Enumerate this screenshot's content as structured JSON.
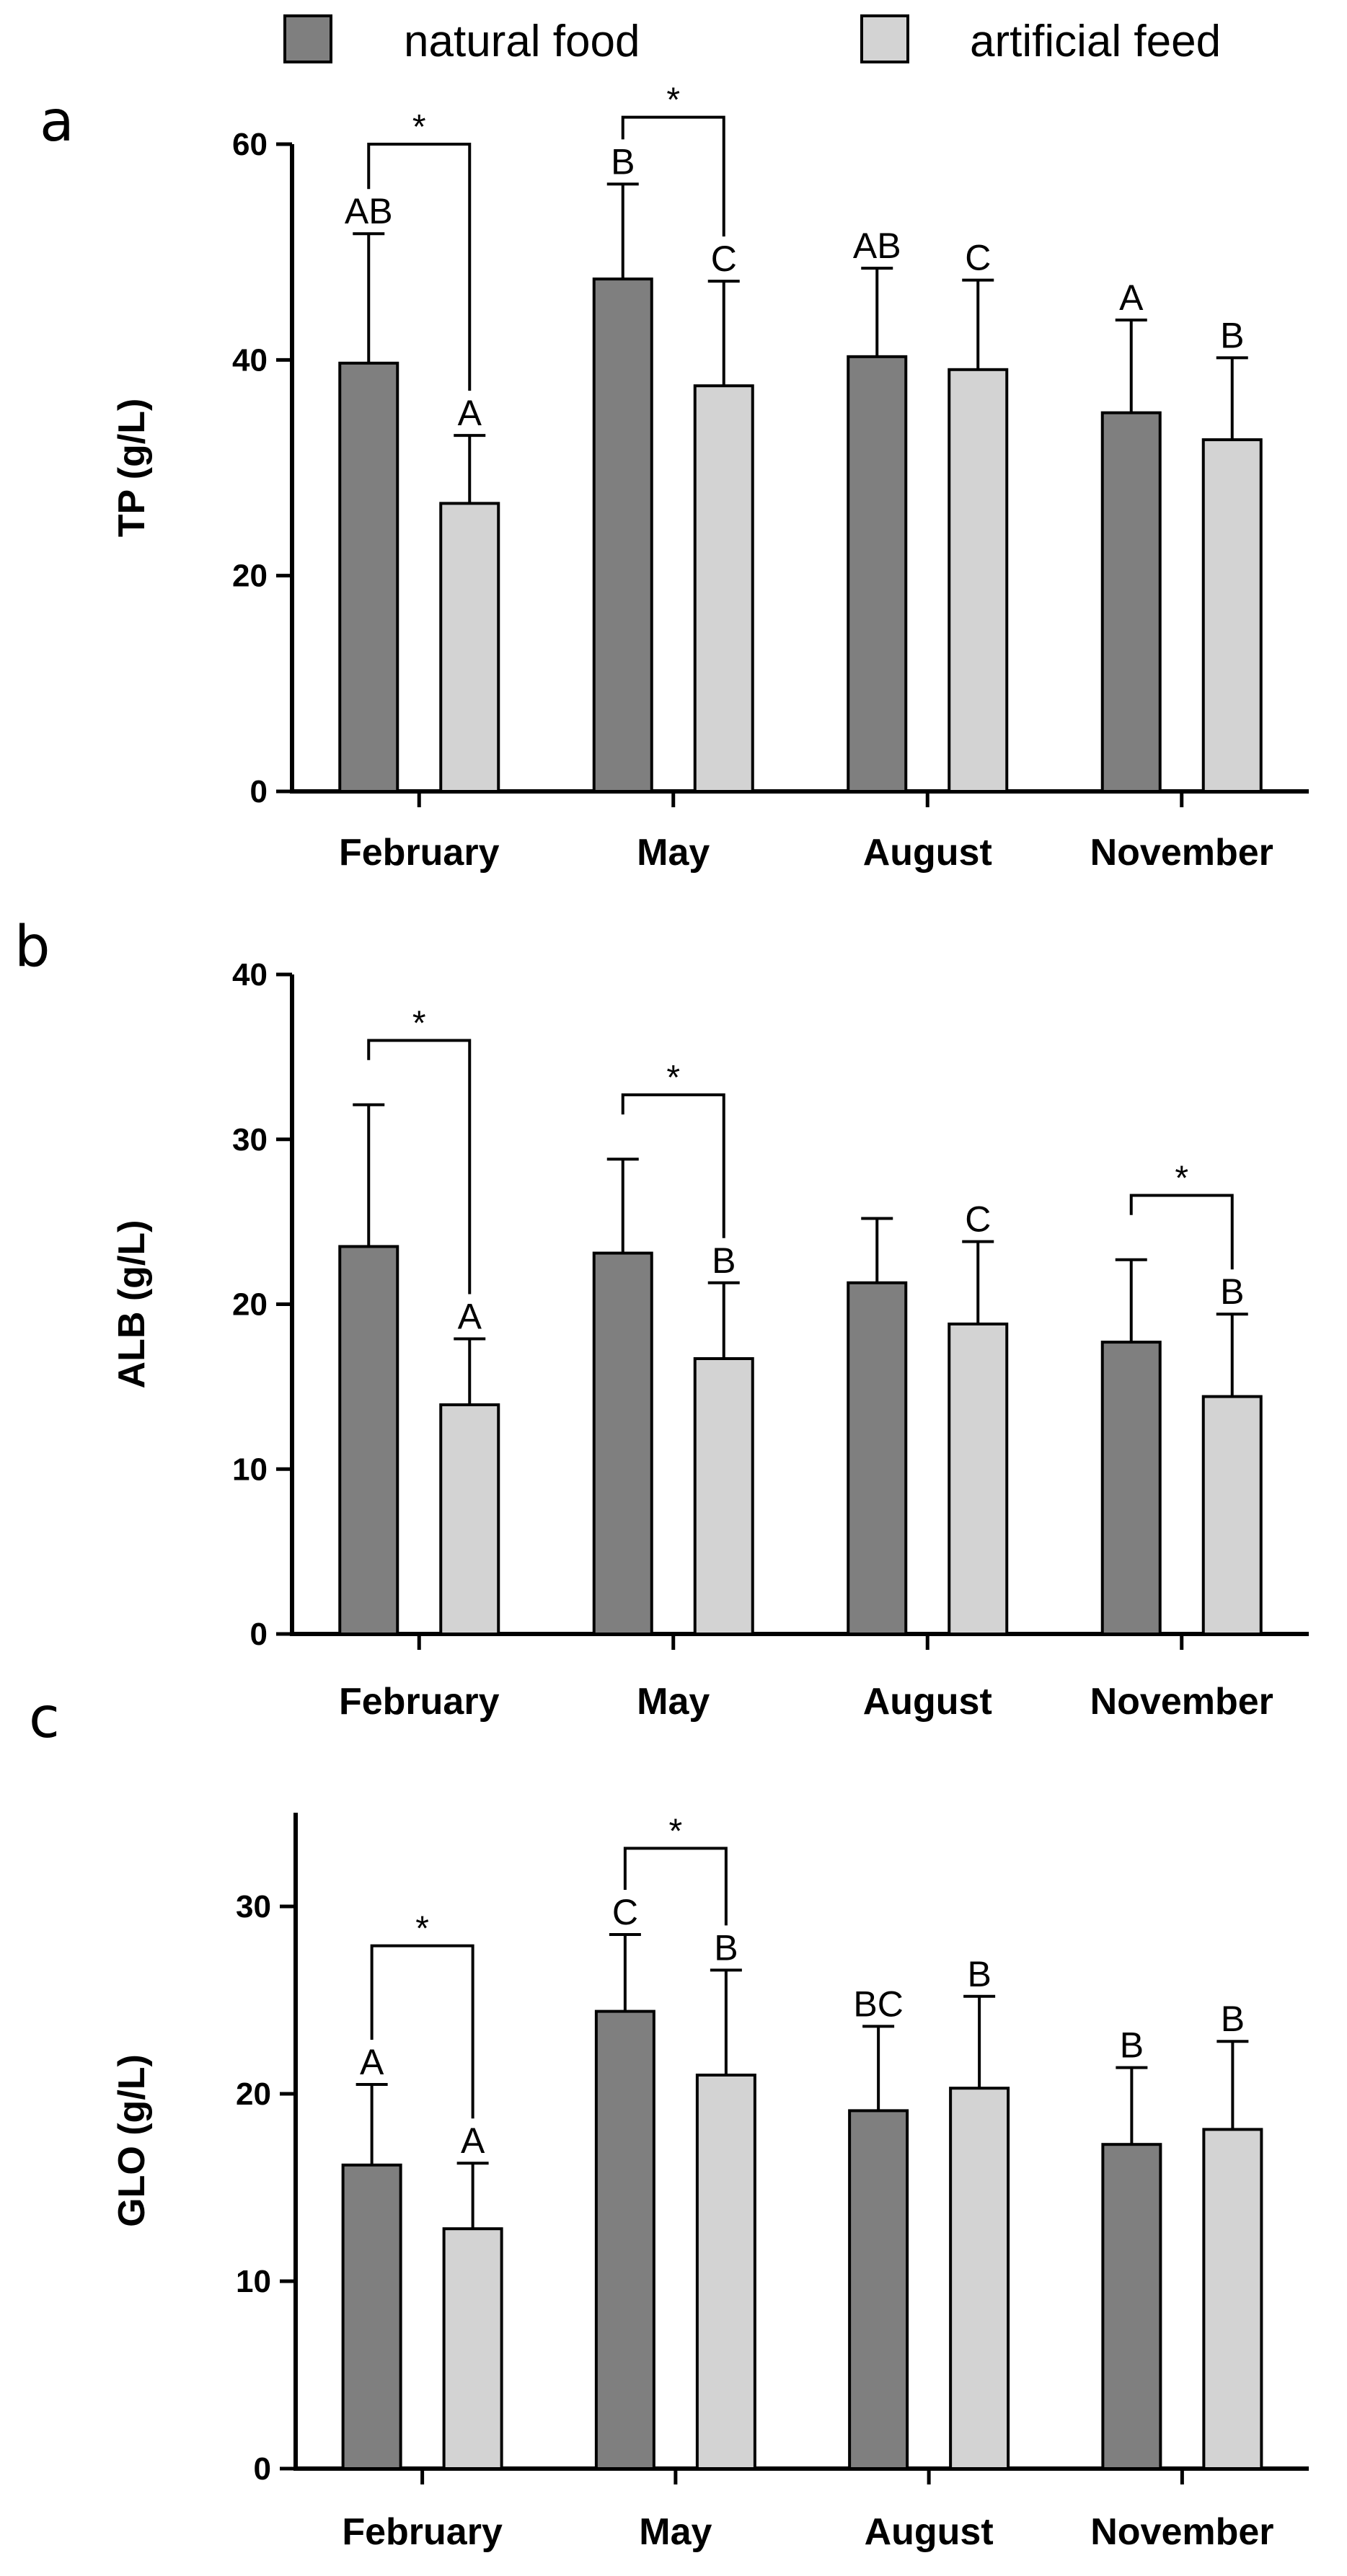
{
  "legend": {
    "series": [
      {
        "name": "natural food",
        "color": "#7f7f7f"
      },
      {
        "name": "artificial feed",
        "color": "#d3d3d3"
      }
    ]
  },
  "chart_data": [
    {
      "type": "bar",
      "panel": "a",
      "ylabel": "TP (g/L)",
      "xlabel": "",
      "categories": [
        "February",
        "May",
        "August",
        "November"
      ],
      "ylim": [
        0,
        60
      ],
      "yticks": [
        0,
        20,
        40,
        60
      ],
      "series": [
        {
          "name": "natural food",
          "values": [
            39.7,
            47.5,
            40.3,
            35.1
          ],
          "errors": [
            12.0,
            8.8,
            8.2,
            8.6
          ],
          "letters": [
            "AB",
            "B",
            "AB",
            "A"
          ]
        },
        {
          "name": "artificial feed",
          "values": [
            26.7,
            37.6,
            39.1,
            32.6
          ],
          "errors": [
            6.3,
            9.7,
            8.3,
            7.6
          ],
          "letters": [
            "A",
            "C",
            "C",
            "B"
          ]
        }
      ],
      "significance": [
        {
          "category": "February",
          "label": "*",
          "top": 60.0
        },
        {
          "category": "May",
          "label": "*",
          "top": 62.5
        }
      ]
    },
    {
      "type": "bar",
      "panel": "b",
      "ylabel": "ALB (g/L)",
      "xlabel": "",
      "categories": [
        "February",
        "May",
        "August",
        "November"
      ],
      "ylim": [
        0,
        40
      ],
      "yticks": [
        0,
        10,
        20,
        30,
        40
      ],
      "series": [
        {
          "name": "natural food",
          "values": [
            23.5,
            23.1,
            21.3,
            17.7
          ],
          "errors": [
            8.6,
            5.7,
            3.9,
            5.0
          ],
          "letters": [
            "",
            "",
            "",
            ""
          ]
        },
        {
          "name": "artificial feed",
          "values": [
            13.9,
            16.7,
            18.8,
            14.4
          ],
          "errors": [
            4.0,
            4.6,
            5.0,
            5.0
          ],
          "letters": [
            "A",
            "B",
            "C",
            "B"
          ]
        }
      ],
      "significance": [
        {
          "category": "February",
          "label": "*",
          "top": 36.0
        },
        {
          "category": "May",
          "label": "*",
          "top": 32.7
        },
        {
          "category": "November",
          "label": "*",
          "top": 26.6
        }
      ]
    },
    {
      "type": "bar",
      "panel": "c",
      "ylabel": "GLO (g/L)",
      "xlabel": "",
      "categories": [
        "February",
        "May",
        "August",
        "November"
      ],
      "ylim": [
        0,
        35
      ],
      "yticks": [
        0,
        10,
        20,
        30
      ],
      "series": [
        {
          "name": "natural food",
          "values": [
            16.2,
            24.4,
            19.1,
            17.3
          ],
          "errors": [
            4.3,
            4.1,
            4.5,
            4.1
          ],
          "letters": [
            "A",
            "C",
            "BC",
            "B"
          ]
        },
        {
          "name": "artificial feed",
          "values": [
            12.8,
            21.0,
            20.3,
            18.1
          ],
          "errors": [
            3.5,
            5.6,
            4.9,
            4.7
          ],
          "letters": [
            "A",
            "B",
            "B",
            "B"
          ]
        }
      ],
      "significance": [
        {
          "category": "February",
          "label": "*",
          "top": 27.9
        },
        {
          "category": "May",
          "label": "*",
          "top": 33.1
        }
      ]
    }
  ]
}
